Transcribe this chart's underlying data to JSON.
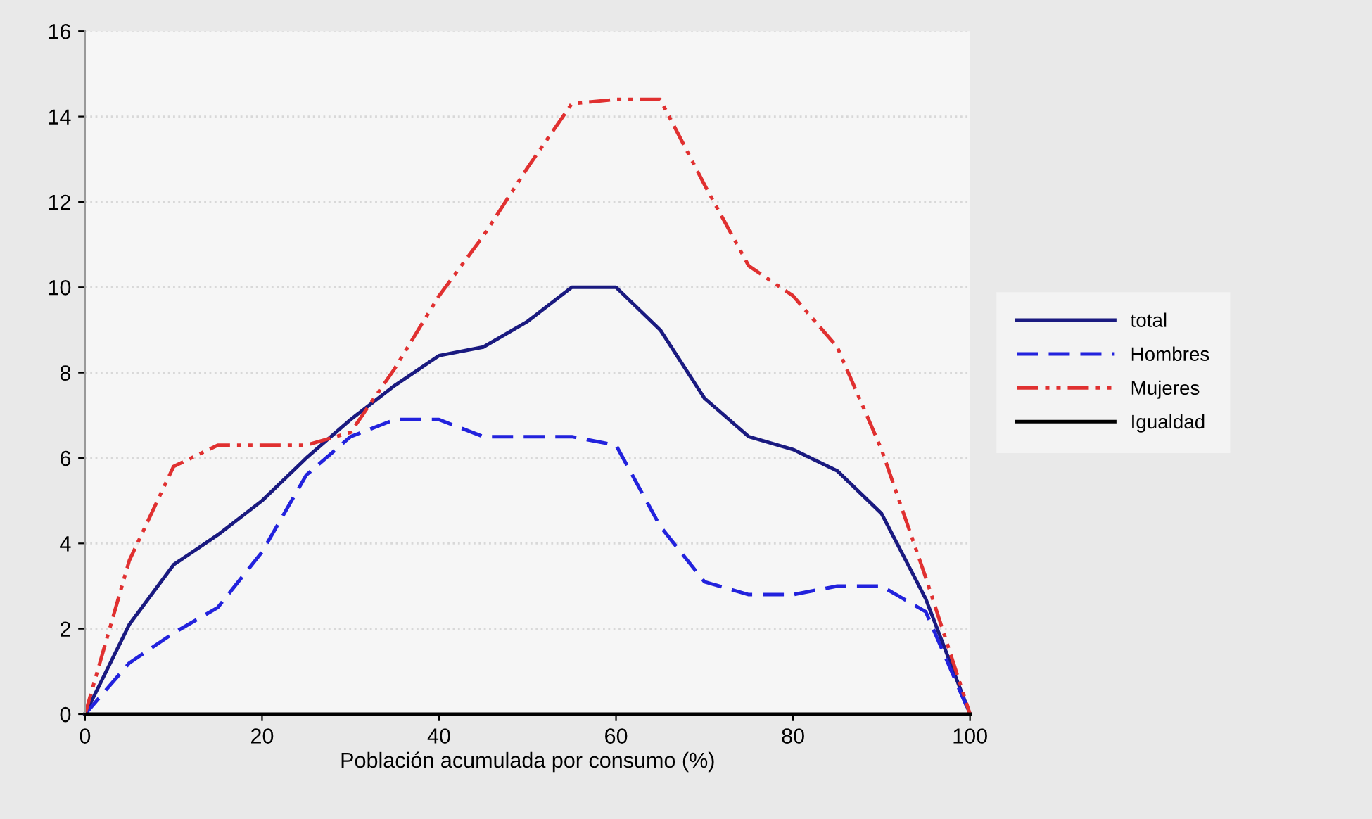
{
  "chart_data": {
    "type": "line",
    "xlabel": "Población acumulada por consumo (%)",
    "x": [
      0,
      5,
      10,
      15,
      20,
      25,
      30,
      35,
      40,
      45,
      50,
      55,
      60,
      65,
      70,
      75,
      80,
      85,
      90,
      95,
      100
    ],
    "series": [
      {
        "name": "total",
        "color": "#1a1a80",
        "line_style": "solid",
        "values": [
          0,
          2.1,
          3.5,
          4.2,
          5.0,
          6.0,
          6.9,
          7.7,
          8.4,
          8.6,
          9.2,
          10.0,
          10.0,
          9.0,
          7.4,
          6.5,
          6.2,
          5.7,
          4.7,
          2.7,
          0
        ]
      },
      {
        "name": "Hombres",
        "color": "#2222dd",
        "line_style": "dashed",
        "values": [
          0,
          1.2,
          1.9,
          2.5,
          3.8,
          5.6,
          6.5,
          6.9,
          6.9,
          6.5,
          6.5,
          6.5,
          6.3,
          4.4,
          3.1,
          2.8,
          2.8,
          3.0,
          3.0,
          2.4,
          0
        ]
      },
      {
        "name": "Mujeres",
        "color": "#e03030",
        "line_style": "dotted",
        "values": [
          0,
          3.6,
          5.8,
          6.3,
          6.3,
          6.3,
          6.6,
          8.1,
          9.8,
          11.2,
          12.8,
          14.3,
          14.4,
          14.4,
          12.4,
          10.5,
          9.8,
          8.6,
          6.2,
          3.2,
          0
        ]
      },
      {
        "name": "Igualdad",
        "color": "#000000",
        "line_style": "solid",
        "values": [
          0,
          0,
          0,
          0,
          0,
          0,
          0,
          0,
          0,
          0,
          0,
          0,
          0,
          0,
          0,
          0,
          0,
          0,
          0,
          0,
          0
        ]
      }
    ],
    "xlim": [
      0,
      100
    ],
    "ylim": [
      0,
      16
    ],
    "xticks": [
      0,
      20,
      40,
      60,
      80,
      100
    ],
    "yticks": [
      0,
      2,
      4,
      6,
      8,
      10,
      12,
      14,
      16
    ],
    "grid": "y",
    "legend": "right",
    "marker": "none"
  }
}
